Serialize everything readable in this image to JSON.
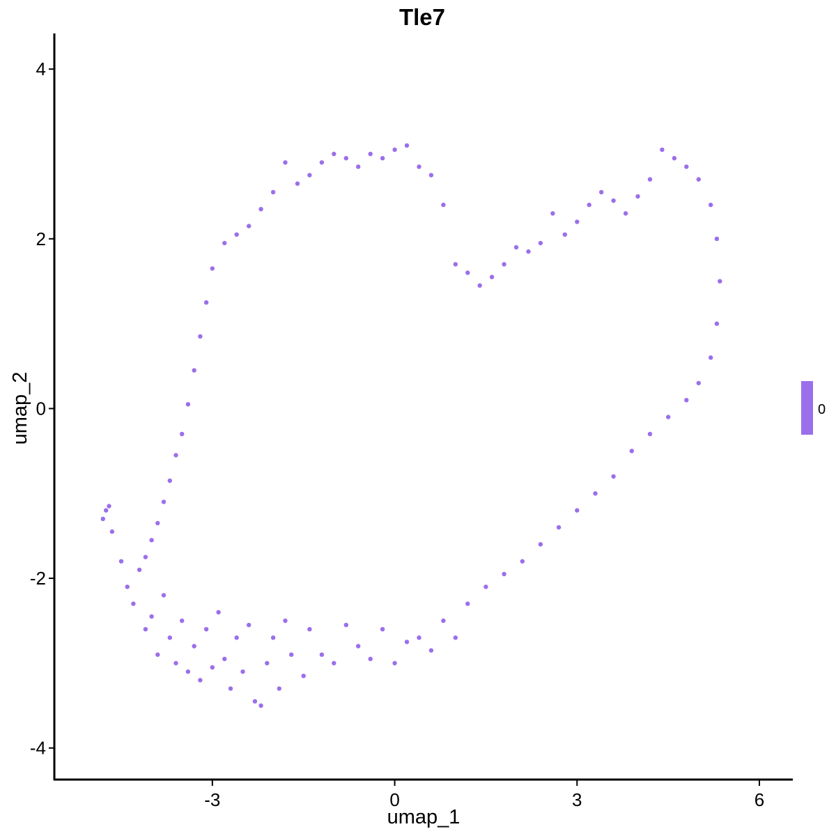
{
  "chart_data": {
    "type": "scatter",
    "title": "Tle7",
    "xlabel": "umap_1",
    "ylabel": "umap_2",
    "xlim": [
      -5.6,
      6.55
    ],
    "ylim": [
      -4.38,
      4.42
    ],
    "xticks": [
      -3,
      0,
      3,
      6
    ],
    "yticks": [
      -4,
      -2,
      0,
      2,
      4
    ],
    "grid": false,
    "point_color": "#9B6FEA",
    "legend": {
      "position": "right",
      "color": "#9B6FEA",
      "label": "0"
    },
    "series": [
      {
        "values": [
          [
            -4.8,
            -1.3
          ],
          [
            -4.75,
            -1.2
          ],
          [
            -4.7,
            -1.15
          ],
          [
            -4.65,
            -1.45
          ],
          [
            -4.5,
            -1.8
          ],
          [
            -4.4,
            -2.1
          ],
          [
            -4.3,
            -2.3
          ],
          [
            -4.2,
            -1.9
          ],
          [
            -4.1,
            -2.6
          ],
          [
            -4.0,
            -2.45
          ],
          [
            -3.9,
            -2.9
          ],
          [
            -3.8,
            -2.2
          ],
          [
            -3.7,
            -2.7
          ],
          [
            -3.6,
            -3.0
          ],
          [
            -3.5,
            -2.5
          ],
          [
            -3.4,
            -3.1
          ],
          [
            -3.3,
            -2.8
          ],
          [
            -3.2,
            -3.2
          ],
          [
            -3.1,
            -2.6
          ],
          [
            -3.0,
            -3.05
          ],
          [
            -2.9,
            -2.4
          ],
          [
            -2.8,
            -2.95
          ],
          [
            -2.7,
            -3.3
          ],
          [
            -2.6,
            -2.7
          ],
          [
            -2.5,
            -3.1
          ],
          [
            -2.4,
            -2.55
          ],
          [
            -2.3,
            -3.45
          ],
          [
            -2.2,
            -3.5
          ],
          [
            -2.1,
            -3.0
          ],
          [
            -2.0,
            -2.7
          ],
          [
            -1.9,
            -3.3
          ],
          [
            -1.8,
            -2.5
          ],
          [
            -1.7,
            -2.9
          ],
          [
            -1.5,
            -3.15
          ],
          [
            -1.4,
            -2.6
          ],
          [
            -1.2,
            -2.9
          ],
          [
            -1.0,
            -3.0
          ],
          [
            -0.8,
            -2.55
          ],
          [
            -0.6,
            -2.8
          ],
          [
            -0.4,
            -2.95
          ],
          [
            -0.2,
            -2.6
          ],
          [
            0.0,
            -3.0
          ],
          [
            0.2,
            -2.75
          ],
          [
            0.4,
            -2.7
          ],
          [
            0.6,
            -2.85
          ],
          [
            0.8,
            -2.5
          ],
          [
            1.0,
            -2.7
          ],
          [
            1.2,
            -2.3
          ],
          [
            1.5,
            -2.1
          ],
          [
            1.8,
            -1.95
          ],
          [
            2.1,
            -1.8
          ],
          [
            2.4,
            -1.6
          ],
          [
            2.7,
            -1.4
          ],
          [
            3.0,
            -1.2
          ],
          [
            3.3,
            -1.0
          ],
          [
            3.6,
            -0.8
          ],
          [
            3.9,
            -0.5
          ],
          [
            4.2,
            -0.3
          ],
          [
            4.5,
            -0.1
          ],
          [
            4.8,
            0.1
          ],
          [
            5.0,
            0.3
          ],
          [
            5.2,
            0.6
          ],
          [
            5.3,
            1.0
          ],
          [
            5.35,
            1.5
          ],
          [
            5.3,
            2.0
          ],
          [
            5.2,
            2.4
          ],
          [
            5.0,
            2.7
          ],
          [
            4.8,
            2.85
          ],
          [
            4.6,
            2.95
          ],
          [
            4.4,
            3.05
          ],
          [
            4.2,
            2.7
          ],
          [
            4.0,
            2.5
          ],
          [
            3.8,
            2.3
          ],
          [
            3.6,
            2.45
          ],
          [
            3.4,
            2.55
          ],
          [
            3.2,
            2.4
          ],
          [
            3.0,
            2.2
          ],
          [
            2.8,
            2.05
          ],
          [
            2.6,
            2.3
          ],
          [
            2.4,
            1.95
          ],
          [
            2.2,
            1.85
          ],
          [
            2.0,
            1.9
          ],
          [
            1.8,
            1.7
          ],
          [
            1.6,
            1.55
          ],
          [
            1.4,
            1.45
          ],
          [
            1.2,
            1.6
          ],
          [
            1.0,
            1.7
          ],
          [
            0.8,
            2.4
          ],
          [
            0.6,
            2.75
          ],
          [
            0.4,
            2.85
          ],
          [
            0.2,
            3.1
          ],
          [
            0.0,
            3.05
          ],
          [
            -0.2,
            2.95
          ],
          [
            -0.4,
            3.0
          ],
          [
            -0.6,
            2.85
          ],
          [
            -0.8,
            2.95
          ],
          [
            -1.0,
            3.0
          ],
          [
            -1.2,
            2.9
          ],
          [
            -1.4,
            2.75
          ],
          [
            -1.6,
            2.65
          ],
          [
            -1.8,
            2.9
          ],
          [
            -2.0,
            2.55
          ],
          [
            -2.2,
            2.35
          ],
          [
            -2.4,
            2.15
          ],
          [
            -2.6,
            2.05
          ],
          [
            -2.8,
            1.95
          ],
          [
            -3.0,
            1.65
          ],
          [
            -3.1,
            1.25
          ],
          [
            -3.2,
            0.85
          ],
          [
            -3.3,
            0.45
          ],
          [
            -3.4,
            0.05
          ],
          [
            -3.5,
            -0.3
          ],
          [
            -3.6,
            -0.55
          ],
          [
            -3.7,
            -0.85
          ],
          [
            -3.8,
            -1.1
          ],
          [
            -3.9,
            -1.35
          ],
          [
            -4.0,
            -1.55
          ],
          [
            -4.1,
            -1.75
          ]
        ]
      }
    ]
  }
}
